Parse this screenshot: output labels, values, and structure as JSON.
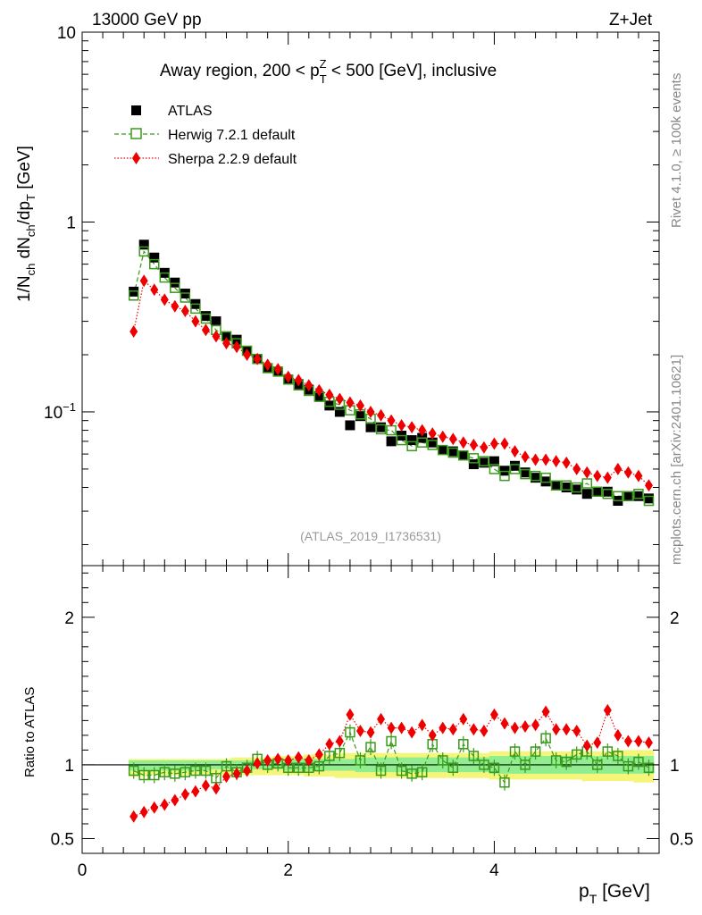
{
  "header": {
    "energy_label": "13000 GeV pp",
    "process_label": "Z+Jet"
  },
  "side_labels": {
    "rivet": "Rivet 4.1.0, ≥ 100k events",
    "mcplots": "mcplots.cern.ch [arXiv:2401.10621]"
  },
  "colors": {
    "atlas": "#000000",
    "herwig": "#3a9a1a",
    "sherpa": "#ee0000",
    "band_mc": "#f5f57a",
    "band_data": "#90ee90"
  },
  "chart_data": [
    {
      "type": "scatter",
      "title_parts": [
        "Away region, 200 < p",
        "T",
        "Z",
        " < 500 [GeV], inclusive"
      ],
      "ylabel_parts": [
        "1/N",
        "ch",
        " dN",
        "ch",
        "/dp",
        "T",
        " [GeV]"
      ],
      "yscale": "log",
      "ylim": [
        0.0155,
        10
      ],
      "xlim": [
        0,
        5.6
      ],
      "y_ticks": [
        {
          "value": 0.1,
          "base": "10",
          "exp": "−1"
        },
        {
          "value": 1,
          "label": "1"
        },
        {
          "value": 10,
          "label": "10"
        }
      ],
      "reference_label": "(ATLAS_2019_I1736531)",
      "legend": [
        {
          "name": "ATLAS",
          "style": "square-filled"
        },
        {
          "name": "Herwig 7.2.1 default",
          "style": "square-open-dashed"
        },
        {
          "name": "Sherpa 2.2.9 default",
          "style": "diamond-dotted"
        }
      ],
      "x": [
        0.5,
        0.6,
        0.7,
        0.8,
        0.9,
        1.0,
        1.1,
        1.2,
        1.3,
        1.4,
        1.5,
        1.6,
        1.7,
        1.8,
        1.9,
        2.0,
        2.1,
        2.2,
        2.3,
        2.4,
        2.5,
        2.6,
        2.7,
        2.8,
        2.9,
        3.0,
        3.1,
        3.2,
        3.3,
        3.4,
        3.5,
        3.6,
        3.7,
        3.8,
        3.9,
        4.0,
        4.1,
        4.2,
        4.3,
        4.4,
        4.5,
        4.6,
        4.7,
        4.8,
        4.9,
        5.0,
        5.1,
        5.2,
        5.3,
        5.4,
        5.5
      ],
      "series": [
        {
          "name": "ATLAS",
          "values": [
            0.43,
            0.76,
            0.65,
            0.54,
            0.48,
            0.42,
            0.37,
            0.32,
            0.3,
            0.25,
            0.24,
            0.21,
            0.19,
            0.17,
            0.163,
            0.148,
            0.14,
            0.131,
            0.121,
            0.108,
            0.1,
            0.085,
            0.095,
            0.083,
            0.083,
            0.07,
            0.075,
            0.071,
            0.073,
            0.069,
            0.063,
            0.062,
            0.059,
            0.053,
            0.054,
            0.055,
            0.049,
            0.052,
            0.048,
            0.045,
            0.043,
            0.041,
            0.04,
            0.039,
            0.037,
            0.038,
            0.038,
            0.034,
            0.036,
            0.036,
            0.035
          ]
        },
        {
          "name": "Herwig 7.2.1 default",
          "values": [
            0.41,
            0.7,
            0.6,
            0.51,
            0.45,
            0.4,
            0.35,
            0.31,
            0.27,
            0.25,
            0.23,
            0.21,
            0.19,
            0.17,
            0.163,
            0.148,
            0.138,
            0.129,
            0.12,
            0.113,
            0.109,
            0.102,
            0.097,
            0.092,
            0.081,
            0.08,
            0.071,
            0.066,
            0.069,
            0.067,
            0.063,
            0.061,
            0.059,
            0.057,
            0.055,
            0.05,
            0.046,
            0.05,
            0.047,
            0.046,
            0.045,
            0.041,
            0.041,
            0.04,
            0.042,
            0.038,
            0.037,
            0.036,
            0.036,
            0.037,
            0.034
          ]
        },
        {
          "name": "Sherpa 2.2.9 default",
          "values": [
            0.265,
            0.49,
            0.44,
            0.39,
            0.36,
            0.34,
            0.3,
            0.27,
            0.25,
            0.23,
            0.22,
            0.2,
            0.19,
            0.177,
            0.168,
            0.153,
            0.147,
            0.138,
            0.13,
            0.123,
            0.117,
            0.112,
            0.108,
            0.1,
            0.096,
            0.09,
            0.085,
            0.083,
            0.08,
            0.077,
            0.074,
            0.072,
            0.069,
            0.067,
            0.065,
            0.068,
            0.068,
            0.062,
            0.058,
            0.056,
            0.056,
            0.055,
            0.054,
            0.05,
            0.048,
            0.046,
            0.045,
            0.05,
            0.048,
            0.046,
            0.041
          ]
        }
      ]
    },
    {
      "type": "scatter",
      "ylabel": "Ratio to ATLAS",
      "xlabel_parts": [
        "p",
        "T",
        " [GeV]"
      ],
      "ylim": [
        0.4,
        2.35
      ],
      "xlim": [
        0,
        5.6
      ],
      "y_ticks": [
        0.5,
        1,
        2
      ],
      "y_tick_labels": [
        "0.5",
        "1",
        "2"
      ],
      "x_ticks": [
        0,
        2,
        4
      ],
      "x_tick_labels": [
        "0",
        "2",
        "4"
      ],
      "x": [
        0.5,
        0.6,
        0.7,
        0.8,
        0.9,
        1.0,
        1.1,
        1.2,
        1.3,
        1.4,
        1.5,
        1.6,
        1.7,
        1.8,
        1.9,
        2.0,
        2.1,
        2.2,
        2.3,
        2.4,
        2.5,
        2.6,
        2.7,
        2.8,
        2.9,
        3.0,
        3.1,
        3.2,
        3.3,
        3.4,
        3.5,
        3.6,
        3.7,
        3.8,
        3.9,
        4.0,
        4.1,
        4.2,
        4.3,
        4.4,
        4.5,
        4.6,
        4.7,
        4.8,
        4.9,
        5.0,
        5.1,
        5.2,
        5.3,
        5.4,
        5.5
      ],
      "series": [
        {
          "name": "Herwig 7.2.1 default",
          "values": [
            0.96,
            0.93,
            0.93,
            0.95,
            0.94,
            0.95,
            0.96,
            0.96,
            0.91,
            0.99,
            0.95,
            0.98,
            1.04,
            1.0,
            1.01,
            0.98,
            0.98,
            0.98,
            0.99,
            1.06,
            1.08,
            1.22,
            1.03,
            1.12,
            0.96,
            1.16,
            0.96,
            0.94,
            0.95,
            1.14,
            1.03,
            0.98,
            1.14,
            1.06,
            1.0,
            0.98,
            0.88,
            1.09,
            1.0,
            1.09,
            1.18,
            1.03,
            1.02,
            1.07,
            1.09,
            1.0,
            1.09,
            1.06,
            0.99,
            1.02,
            0.98
          ]
        },
        {
          "name": "Sherpa 2.2.9 default",
          "values": [
            0.65,
            0.68,
            0.71,
            0.73,
            0.76,
            0.8,
            0.82,
            0.86,
            0.84,
            0.92,
            0.94,
            0.96,
            1.01,
            1.03,
            1.04,
            1.03,
            1.05,
            1.03,
            1.07,
            1.14,
            1.16,
            1.34,
            1.23,
            1.22,
            1.31,
            1.25,
            1.25,
            1.22,
            1.27,
            1.2,
            1.25,
            1.24,
            1.31,
            1.24,
            1.23,
            1.34,
            1.28,
            1.25,
            1.26,
            1.27,
            1.36,
            1.24,
            1.24,
            1.23,
            1.13,
            1.15,
            1.37,
            1.2,
            1.16,
            1.16,
            1.15
          ]
        }
      ],
      "band_mc": {
        "lower": [
          0.92,
          0.92,
          0.93,
          0.93,
          0.93,
          0.93,
          0.93,
          0.93,
          0.93,
          0.93,
          0.93,
          0.93,
          0.93,
          0.93,
          0.93,
          0.93,
          0.93,
          0.92,
          0.92,
          0.92,
          0.91,
          0.91,
          0.91,
          0.91,
          0.91,
          0.91,
          0.91,
          0.91,
          0.91,
          0.91,
          0.91,
          0.91,
          0.91,
          0.91,
          0.91,
          0.9,
          0.9,
          0.9,
          0.9,
          0.9,
          0.9,
          0.9,
          0.9,
          0.9,
          0.89,
          0.89,
          0.89,
          0.89,
          0.89,
          0.88,
          0.88
        ],
        "upper": [
          1.04,
          1.04,
          1.04,
          1.04,
          1.04,
          1.04,
          1.04,
          1.04,
          1.04,
          1.04,
          1.05,
          1.05,
          1.05,
          1.05,
          1.06,
          1.06,
          1.06,
          1.07,
          1.07,
          1.07,
          1.08,
          1.08,
          1.08,
          1.08,
          1.08,
          1.08,
          1.08,
          1.08,
          1.08,
          1.08,
          1.08,
          1.08,
          1.08,
          1.08,
          1.08,
          1.09,
          1.09,
          1.09,
          1.09,
          1.09,
          1.09,
          1.09,
          1.09,
          1.09,
          1.09,
          1.09,
          1.09,
          1.1,
          1.1,
          1.1,
          1.1
        ]
      },
      "band_data": {
        "lower": [
          0.96,
          0.96,
          0.96,
          0.96,
          0.96,
          0.96,
          0.96,
          0.96,
          0.97,
          0.97,
          0.97,
          0.97,
          0.97,
          0.97,
          0.97,
          0.96,
          0.96,
          0.96,
          0.96,
          0.96,
          0.96,
          0.96,
          0.95,
          0.95,
          0.95,
          0.95,
          0.95,
          0.95,
          0.95,
          0.95,
          0.95,
          0.95,
          0.95,
          0.95,
          0.95,
          0.94,
          0.94,
          0.94,
          0.94,
          0.94,
          0.94,
          0.94,
          0.94,
          0.94,
          0.94,
          0.94,
          0.94,
          0.94,
          0.94,
          0.94,
          0.94
        ],
        "upper": [
          1.03,
          1.03,
          1.03,
          1.03,
          1.03,
          1.03,
          1.03,
          1.03,
          1.03,
          1.03,
          1.03,
          1.03,
          1.03,
          1.03,
          1.03,
          1.04,
          1.04,
          1.04,
          1.04,
          1.04,
          1.04,
          1.04,
          1.05,
          1.05,
          1.05,
          1.05,
          1.05,
          1.05,
          1.05,
          1.05,
          1.05,
          1.05,
          1.05,
          1.05,
          1.05,
          1.06,
          1.06,
          1.06,
          1.06,
          1.06,
          1.06,
          1.06,
          1.06,
          1.06,
          1.06,
          1.06,
          1.06,
          1.06,
          1.06,
          1.06,
          1.06
        ]
      }
    }
  ]
}
